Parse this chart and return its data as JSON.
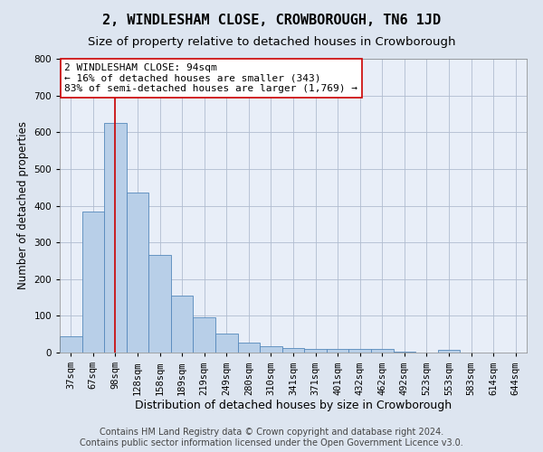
{
  "title": "2, WINDLESHAM CLOSE, CROWBOROUGH, TN6 1JD",
  "subtitle": "Size of property relative to detached houses in Crowborough",
  "xlabel": "Distribution of detached houses by size in Crowborough",
  "ylabel": "Number of detached properties",
  "categories": [
    "37sqm",
    "67sqm",
    "98sqm",
    "128sqm",
    "158sqm",
    "189sqm",
    "219sqm",
    "249sqm",
    "280sqm",
    "310sqm",
    "341sqm",
    "371sqm",
    "401sqm",
    "432sqm",
    "462sqm",
    "492sqm",
    "523sqm",
    "553sqm",
    "583sqm",
    "614sqm",
    "644sqm"
  ],
  "values": [
    45,
    385,
    625,
    435,
    265,
    155,
    95,
    52,
    28,
    17,
    12,
    10,
    10,
    10,
    10,
    2,
    0,
    7,
    0,
    0,
    0
  ],
  "bar_color": "#b8cfe8",
  "bar_edge_color": "#5588bb",
  "highlight_bar_index": 2,
  "highlight_line_color": "#cc0000",
  "annotation_line1": "2 WINDLESHAM CLOSE: 94sqm",
  "annotation_line2": "← 16% of detached houses are smaller (343)",
  "annotation_line3": "83% of semi-detached houses are larger (1,769) →",
  "annotation_box_color": "#ffffff",
  "annotation_box_edge_color": "#cc0000",
  "ylim": [
    0,
    800
  ],
  "yticks": [
    0,
    100,
    200,
    300,
    400,
    500,
    600,
    700,
    800
  ],
  "footer_line1": "Contains HM Land Registry data © Crown copyright and database right 2024.",
  "footer_line2": "Contains public sector information licensed under the Open Government Licence v3.0.",
  "bg_color": "#dde5f0",
  "plot_bg_color": "#e8eef8",
  "title_fontsize": 11,
  "subtitle_fontsize": 9.5,
  "xlabel_fontsize": 9,
  "ylabel_fontsize": 8.5,
  "tick_fontsize": 7.5,
  "annotation_fontsize": 8,
  "footer_fontsize": 7
}
